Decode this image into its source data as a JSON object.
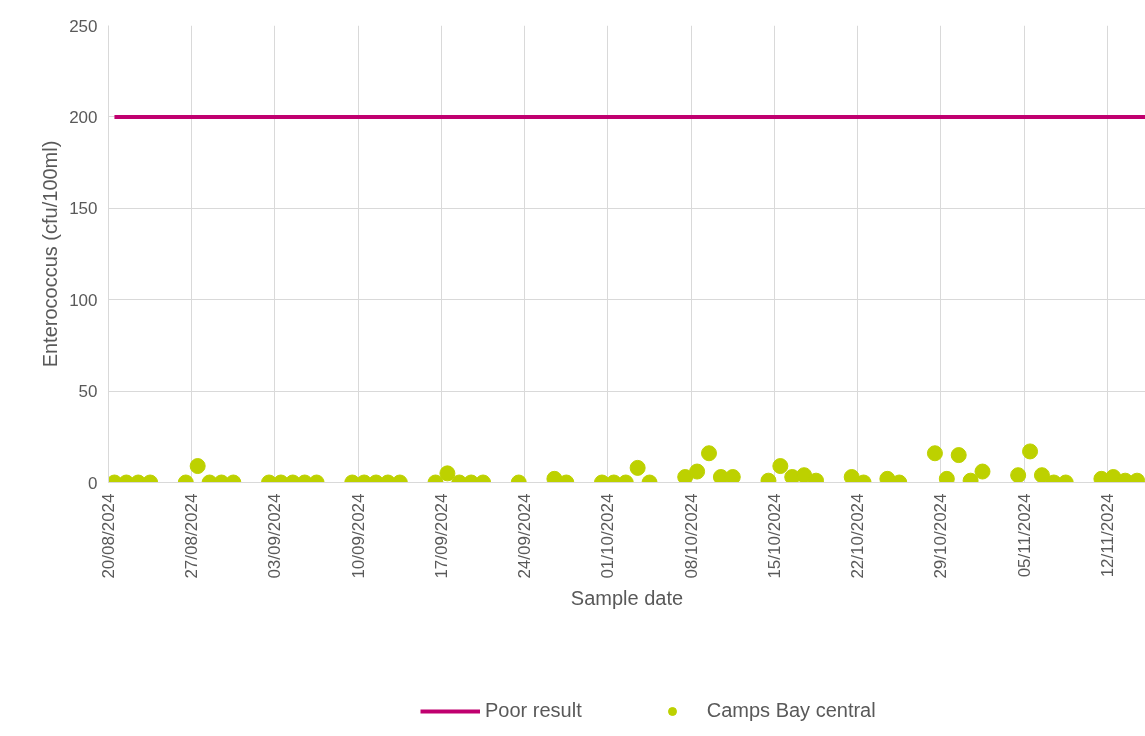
{
  "chart_data": {
    "type": "scatter",
    "xlabel": "Sample date",
    "ylabel": "Enterococcus (cfu/100ml)",
    "xlim": [
      "2024-08-20",
      "2024-11-15T05:00"
    ],
    "ylim": [
      0,
      250
    ],
    "yticks": [
      0,
      50,
      100,
      150,
      200,
      250
    ],
    "xticks": [
      {
        "value": "2024-08-20",
        "label": "20/08/2024"
      },
      {
        "value": "2024-08-27",
        "label": "27/08/2024"
      },
      {
        "value": "2024-09-03",
        "label": "03/09/2024"
      },
      {
        "value": "2024-09-10",
        "label": "10/09/2024"
      },
      {
        "value": "2024-09-17",
        "label": "17/09/2024"
      },
      {
        "value": "2024-09-24",
        "label": "24/09/2024"
      },
      {
        "value": "2024-10-01",
        "label": "01/10/2024"
      },
      {
        "value": "2024-10-08",
        "label": "08/10/2024"
      },
      {
        "value": "2024-10-15",
        "label": "15/10/2024"
      },
      {
        "value": "2024-10-22",
        "label": "22/10/2024"
      },
      {
        "value": "2024-10-29",
        "label": "29/10/2024"
      },
      {
        "value": "2024-11-05",
        "label": "05/11/2024"
      },
      {
        "value": "2024-11-12",
        "label": "12/11/2024"
      }
    ],
    "grid": true,
    "legend": "bottom",
    "series": [
      {
        "name": "Poor result",
        "type": "line",
        "color": "#c0006f",
        "line_style": "solid",
        "x": [
          "2024-08-20T12:00",
          "2024-11-15T05:00"
        ],
        "values": [
          200,
          200
        ]
      },
      {
        "name": "Camps Bay central",
        "marker": "circle",
        "color": "#bdd100",
        "x": [
          "2024-08-20T12:00",
          "2024-08-21T12:00",
          "2024-08-22T12:00",
          "2024-08-23T12:00",
          "2024-08-26T12:00",
          "2024-08-27T12:00",
          "2024-08-28T12:00",
          "2024-08-29T12:00",
          "2024-08-30T12:00",
          "2024-09-02T12:00",
          "2024-09-03T12:00",
          "2024-09-04T12:00",
          "2024-09-05T12:00",
          "2024-09-06T12:00",
          "2024-09-09T12:00",
          "2024-09-10T12:00",
          "2024-09-11T12:00",
          "2024-09-12T12:00",
          "2024-09-13T12:00",
          "2024-09-16T12:00",
          "2024-09-17T12:00",
          "2024-09-18T12:00",
          "2024-09-19T12:00",
          "2024-09-20T12:00",
          "2024-09-23T12:00",
          "2024-09-26T12:00",
          "2024-09-27T12:00",
          "2024-09-30T12:00",
          "2024-10-01T12:00",
          "2024-10-02T12:00",
          "2024-10-03T12:00",
          "2024-10-04T12:00",
          "2024-10-07T12:00",
          "2024-10-08T12:00",
          "2024-10-09T12:00",
          "2024-10-10T12:00",
          "2024-10-11T12:00",
          "2024-10-14T12:00",
          "2024-10-15T12:00",
          "2024-10-16T12:00",
          "2024-10-17T12:00",
          "2024-10-18T12:00",
          "2024-10-21T12:00",
          "2024-10-22T12:00",
          "2024-10-24T12:00",
          "2024-10-25T12:00",
          "2024-10-28T12:00",
          "2024-10-29T12:00",
          "2024-10-30T12:00",
          "2024-10-31T12:00",
          "2024-11-01T12:00",
          "2024-11-04T12:00",
          "2024-11-05T12:00",
          "2024-11-06T12:00",
          "2024-11-07T12:00",
          "2024-11-08T12:00",
          "2024-11-11T12:00",
          "2024-11-12T12:00",
          "2024-11-13T12:00",
          "2024-11-14T12:00"
        ],
        "values": [
          0,
          0,
          0,
          0,
          0,
          9,
          0,
          0,
          0,
          0,
          0,
          0,
          0,
          0,
          0,
          0,
          0,
          0,
          0,
          0,
          5,
          0,
          0,
          0,
          0,
          2,
          0,
          0,
          0,
          0,
          8,
          0,
          3,
          6,
          16,
          3,
          3,
          1,
          9,
          3,
          4,
          1,
          3,
          0,
          2,
          0,
          16,
          2,
          15,
          1,
          6,
          4,
          17,
          4,
          0,
          0,
          2,
          3,
          1,
          1
        ]
      }
    ]
  }
}
